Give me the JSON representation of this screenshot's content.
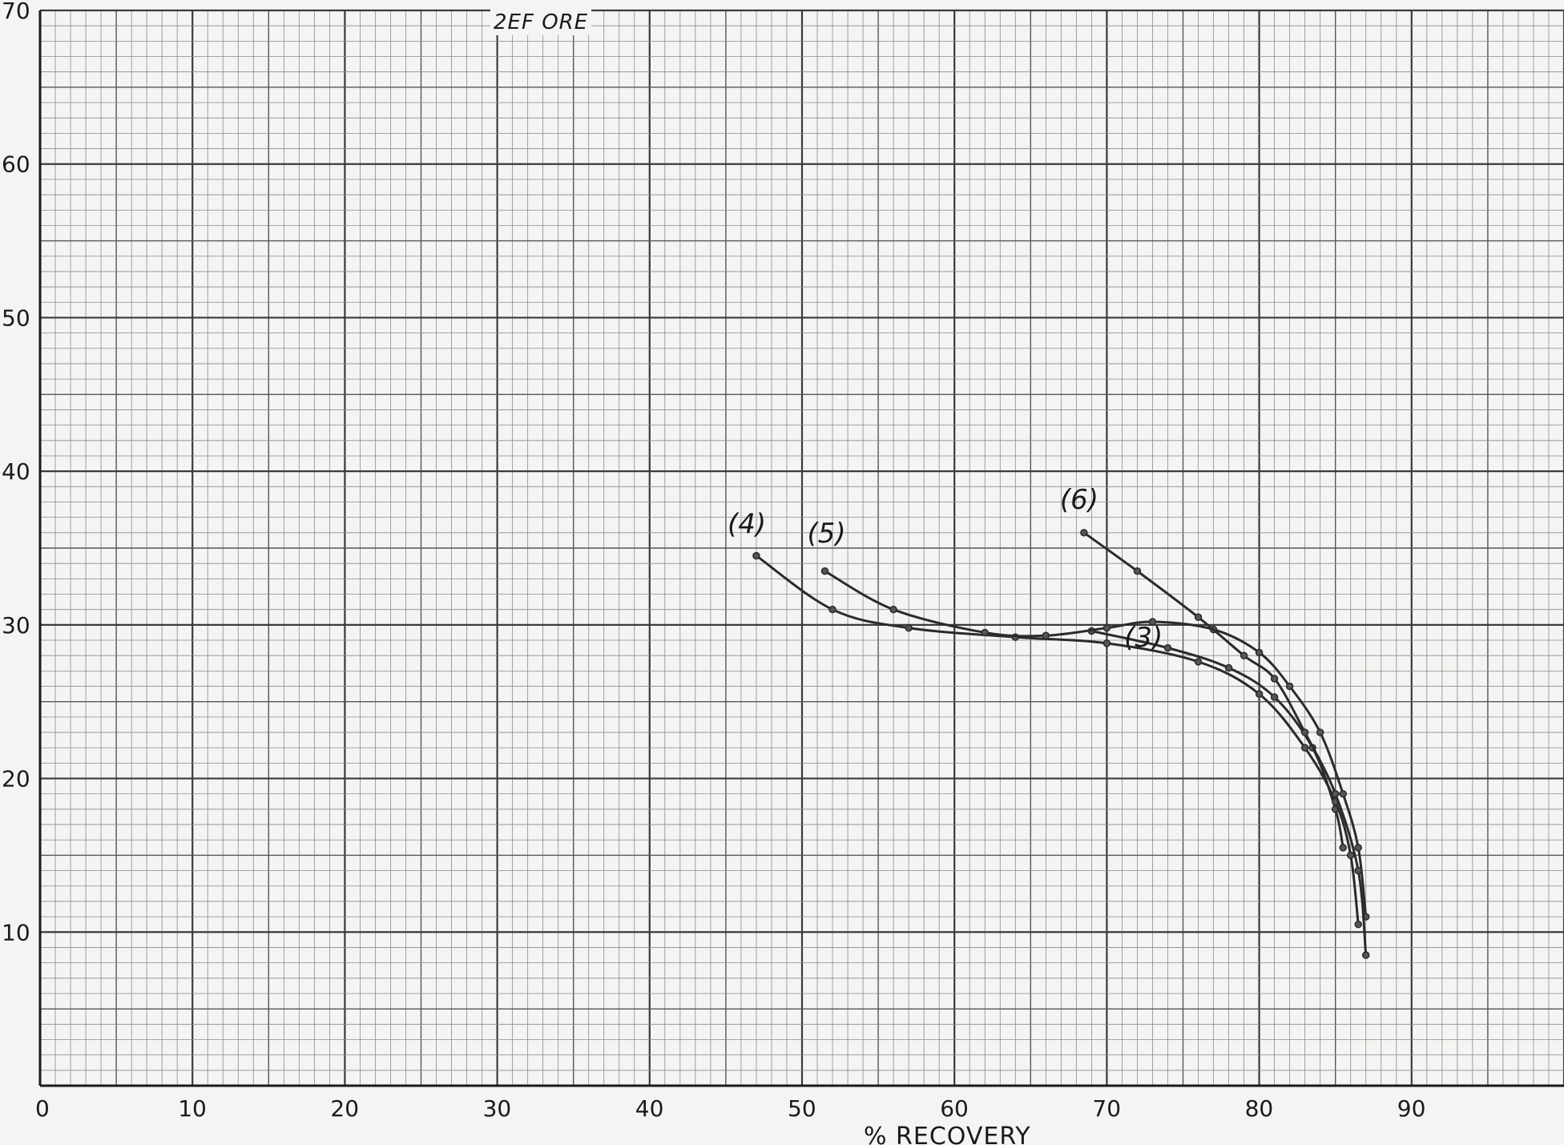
{
  "chart_data": {
    "type": "line",
    "title": "2EF ORE",
    "xlabel": "% RECOVERY",
    "ylabel": "",
    "xlim": [
      0,
      100
    ],
    "ylim": [
      0,
      70
    ],
    "x_ticks": [
      "0",
      "10",
      "20",
      "30",
      "40",
      "50",
      "60",
      "70",
      "80",
      "90"
    ],
    "y_ticks": [
      "10",
      "20",
      "30",
      "40",
      "50",
      "60",
      "70"
    ],
    "grid": true,
    "series": [
      {
        "name": "(3)",
        "points": [
          [
            69,
            29.6
          ],
          [
            74,
            28.5
          ],
          [
            78,
            27.2
          ],
          [
            81,
            25.3
          ],
          [
            83.5,
            22
          ],
          [
            85,
            18
          ],
          [
            85.5,
            15.5
          ]
        ]
      },
      {
        "name": "(4)",
        "points": [
          [
            47,
            34.5
          ],
          [
            52,
            31
          ],
          [
            57,
            29.8
          ],
          [
            64,
            29.2
          ],
          [
            70,
            28.8
          ],
          [
            76,
            27.6
          ],
          [
            80,
            25.5
          ],
          [
            83,
            22
          ],
          [
            85,
            18.5
          ],
          [
            86,
            15
          ],
          [
            86.5,
            10.5
          ]
        ]
      },
      {
        "name": "(5)",
        "points": [
          [
            51.5,
            33.5
          ],
          [
            56,
            31
          ],
          [
            62,
            29.5
          ],
          [
            66,
            29.3
          ],
          [
            70,
            29.8
          ],
          [
            73,
            30.2
          ],
          [
            77,
            29.7
          ],
          [
            80,
            28.2
          ],
          [
            82,
            26
          ],
          [
            84,
            23
          ],
          [
            85.5,
            19
          ],
          [
            86.5,
            15.5
          ],
          [
            87,
            11
          ]
        ]
      },
      {
        "name": "(6)",
        "points": [
          [
            68.5,
            36
          ],
          [
            72,
            33.5
          ],
          [
            76,
            30.5
          ],
          [
            79,
            28
          ],
          [
            81,
            26.5
          ],
          [
            83,
            23
          ],
          [
            85,
            19
          ],
          [
            86.5,
            14
          ],
          [
            87,
            8.5
          ]
        ]
      }
    ]
  }
}
